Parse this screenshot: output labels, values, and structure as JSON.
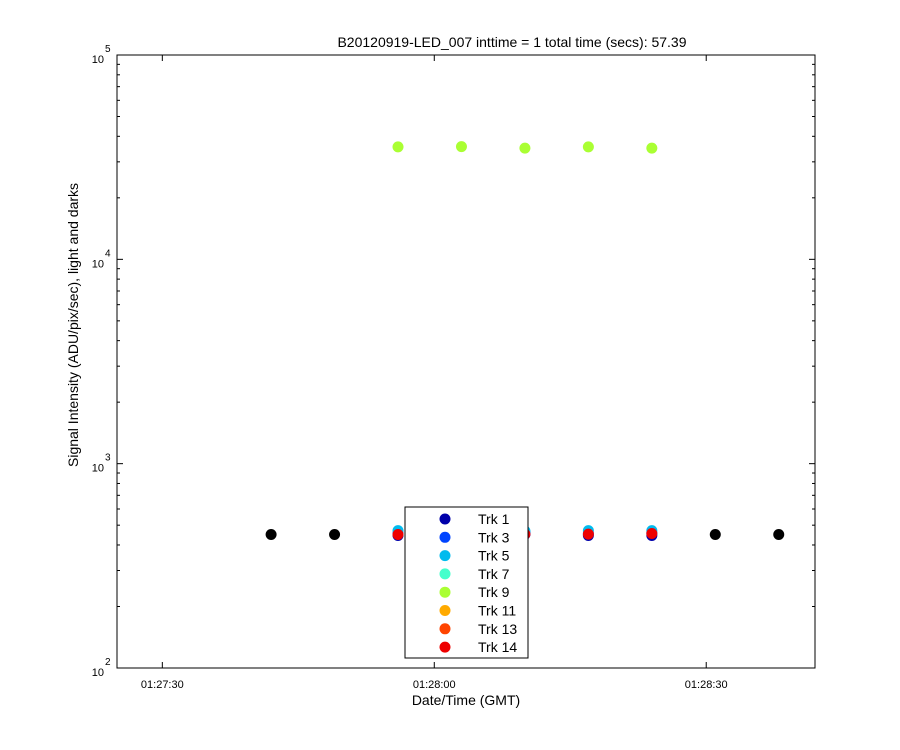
{
  "chart_data": {
    "type": "scatter",
    "title": "B20120919-LED_007 inttime = 1 total time (secs): 57.39",
    "xlabel": "Date/Time (GMT)",
    "ylabel": "Signal Intensity (ADU/pix/sec), light and darks",
    "yscale": "log",
    "ylim": [
      100,
      100000
    ],
    "xlim": [
      "01:27:25",
      "01:28:42"
    ],
    "x_ticks": [
      "01:27:30",
      "01:28:00",
      "01:28:30"
    ],
    "y_ticks": [
      {
        "base": "10",
        "exp": "2",
        "value": 100
      },
      {
        "base": "10",
        "exp": "3",
        "value": 1000
      },
      {
        "base": "10",
        "exp": "4",
        "value": 10000
      },
      {
        "base": "10",
        "exp": "5",
        "value": 100000
      }
    ],
    "grid": false,
    "legend_position": "bottom-center",
    "series": [
      {
        "name": "Trk 1",
        "color": "#0000aa",
        "x": [
          "01:27:56",
          "01:28:03",
          "01:28:10",
          "01:28:17",
          "01:28:24"
        ],
        "y": [
          445,
          452,
          450,
          445,
          445
        ]
      },
      {
        "name": "Trk 3",
        "color": "#0044ff",
        "x": [
          "01:27:56",
          "01:28:03",
          "01:28:10",
          "01:28:17",
          "01:28:24"
        ],
        "y": [
          455,
          462,
          460,
          455,
          458
        ]
      },
      {
        "name": "Trk 5",
        "color": "#00bbee",
        "x": [
          "01:27:56",
          "01:28:03",
          "01:28:10",
          "01:28:17",
          "01:28:24"
        ],
        "y": [
          470,
          468,
          468,
          470,
          470
        ]
      },
      {
        "name": "Trk 7",
        "color": "#44ffcc",
        "x": [],
        "y": []
      },
      {
        "name": "Trk 9",
        "color": "#aaff33",
        "x": [
          "01:27:56",
          "01:28:03",
          "01:28:10",
          "01:28:17",
          "01:28:24"
        ],
        "y": [
          35500,
          35600,
          35000,
          35500,
          35000
        ]
      },
      {
        "name": "Trk 11",
        "color": "#ffaa00",
        "x": [],
        "y": []
      },
      {
        "name": "Trk 13",
        "color": "#ff4400",
        "x": [],
        "y": []
      },
      {
        "name": "Trk 14",
        "color": "#ee0000",
        "x": [
          "01:27:56",
          "01:28:03",
          "01:28:10",
          "01:28:17",
          "01:28:24"
        ],
        "y": [
          450,
          455,
          452,
          452,
          455
        ]
      },
      {
        "name": "",
        "color": "#000000",
        "x": [
          "01:27:42",
          "01:27:49",
          "01:28:31",
          "01:28:38"
        ],
        "y": [
          450,
          450,
          450,
          450
        ]
      }
    ]
  }
}
